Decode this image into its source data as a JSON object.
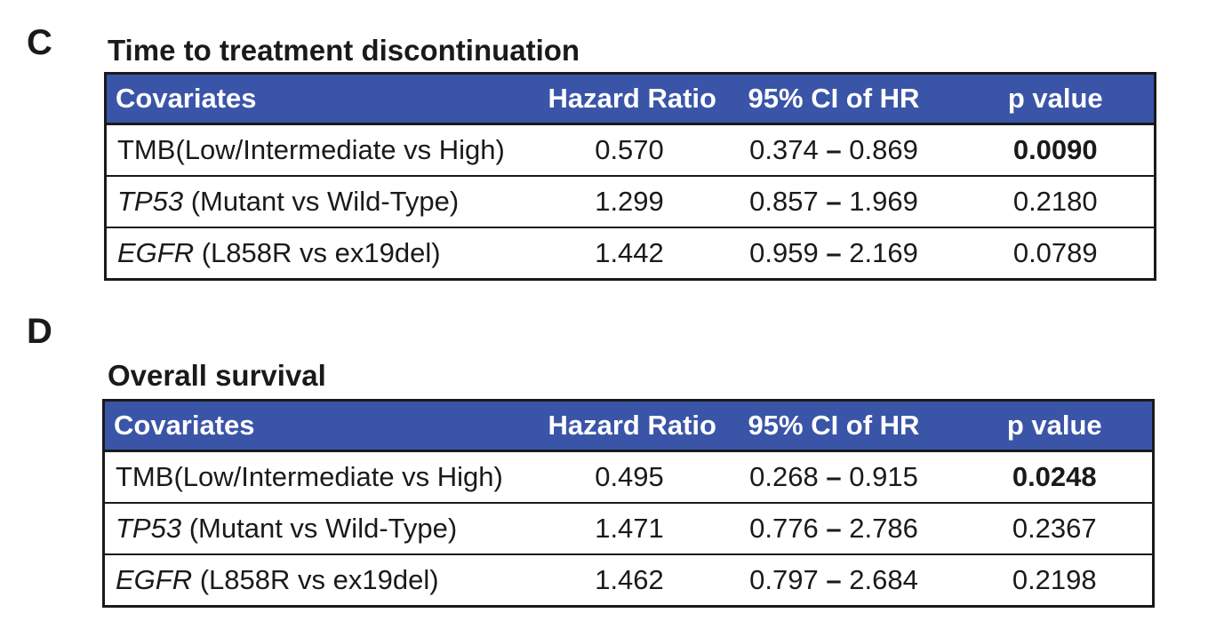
{
  "panels": [
    {
      "letter": "C",
      "title": "Time to treatment discontinuation",
      "headers": [
        "Covariates",
        "Hazard Ratio",
        "95% CI of HR",
        "p value"
      ],
      "rows": [
        {
          "gene": "TMB",
          "gene_italic": false,
          "comparison": "(Low/Intermediate vs High)",
          "hr": "0.570",
          "ci_low": "0.374",
          "ci_high": "0.869",
          "p": "0.0090",
          "significant": true
        },
        {
          "gene": "TP53",
          "gene_italic": true,
          "comparison": " (Mutant vs Wild-Type)",
          "hr": "1.299",
          "ci_low": "0.857",
          "ci_high": "1.969",
          "p": "0.2180",
          "significant": false
        },
        {
          "gene": "EGFR",
          "gene_italic": true,
          "comparison": " (L858R vs ex19del)",
          "hr": "1.442",
          "ci_low": "0.959",
          "ci_high": "2.169",
          "p": "0.0789",
          "significant": false
        }
      ]
    },
    {
      "letter": "D",
      "title": "Overall survival",
      "headers": [
        "Covariates",
        "Hazard Ratio",
        "95% CI of HR",
        "p value"
      ],
      "rows": [
        {
          "gene": "TMB",
          "gene_italic": false,
          "comparison": "(Low/Intermediate vs High)",
          "hr": "0.495",
          "ci_low": "0.268",
          "ci_high": "0.915",
          "p": "0.0248",
          "significant": true
        },
        {
          "gene": "TP53",
          "gene_italic": true,
          "comparison": " (Mutant vs Wild-Type)",
          "hr": "1.471",
          "ci_low": "0.776",
          "ci_high": "2.786",
          "p": "0.2367",
          "significant": false
        },
        {
          "gene": "EGFR",
          "gene_italic": true,
          "comparison": " (L858R vs ex19del)",
          "hr": "1.462",
          "ci_low": "0.797",
          "ci_high": "2.684",
          "p": "0.2198",
          "significant": false
        }
      ]
    }
  ],
  "ci_separator": "–"
}
